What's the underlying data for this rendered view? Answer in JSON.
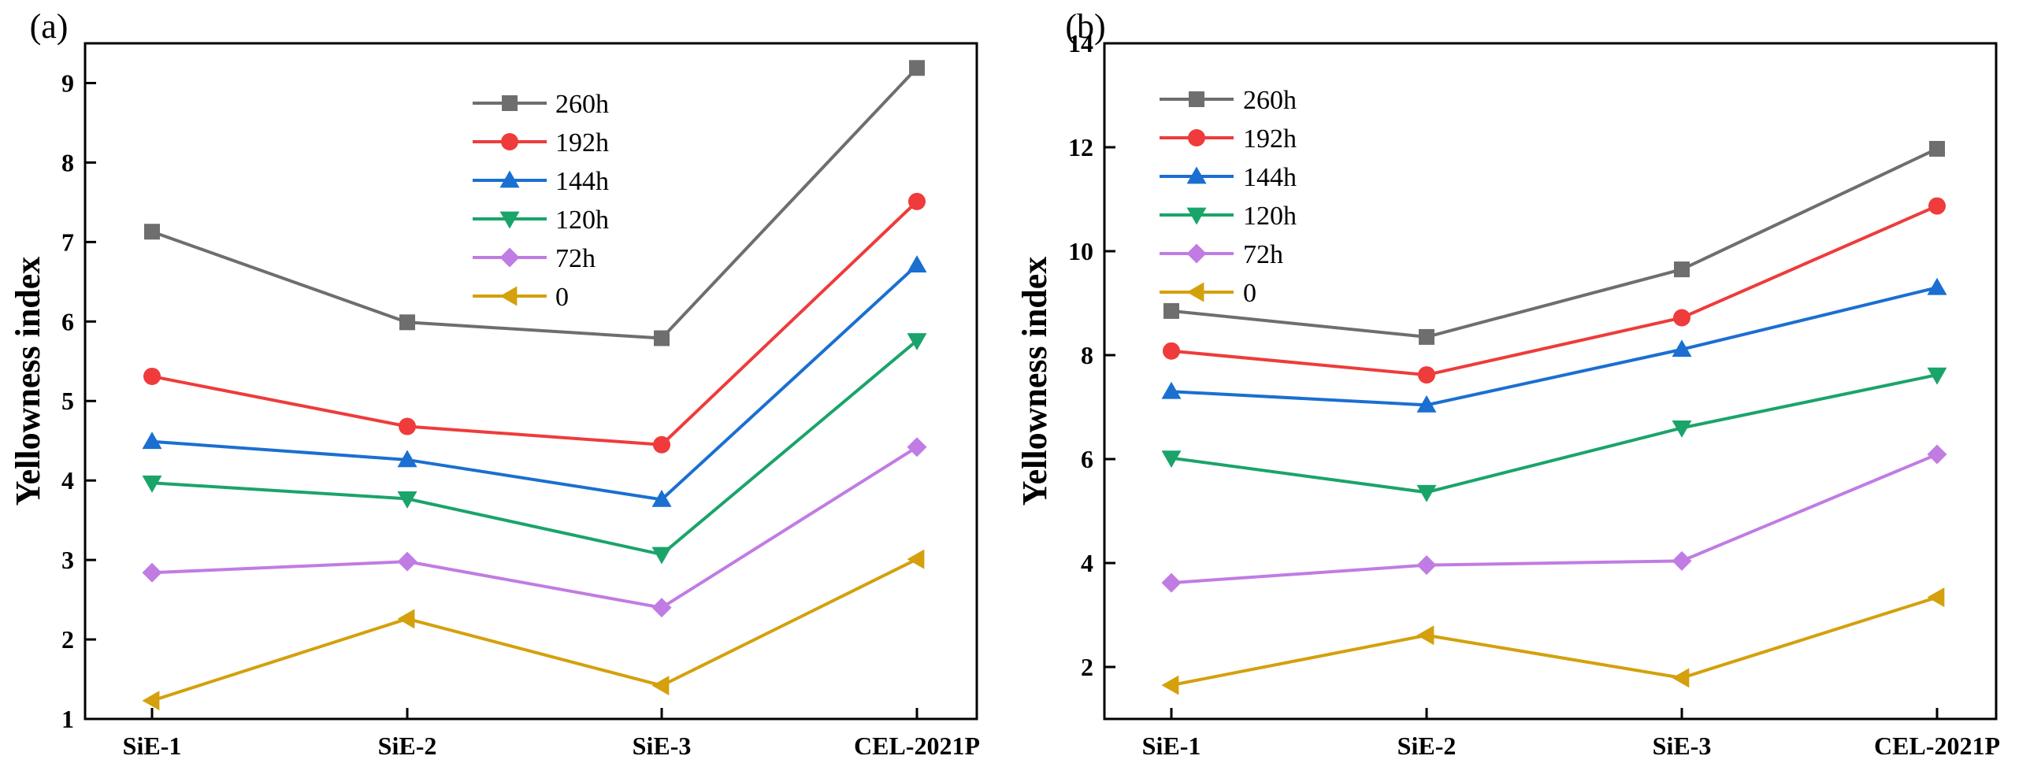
{
  "chart_data": [
    {
      "panel_label": "(a)",
      "type": "line",
      "title": "",
      "xlabel": "",
      "ylabel": "Yellowness index",
      "categories": [
        "SiE-1",
        "SiE-2",
        "SiE-3",
        "CEL-2021P"
      ],
      "ylim": [
        1,
        9.5
      ],
      "yticks": [
        1,
        2,
        3,
        4,
        5,
        6,
        7,
        8,
        9
      ],
      "legend_position": "top-center",
      "series": [
        {
          "name": "260h",
          "color": "#6e6e6e",
          "marker": "square",
          "values": [
            7.13,
            5.99,
            5.79,
            9.19
          ]
        },
        {
          "name": "192h",
          "color": "#ef3b3b",
          "marker": "circle",
          "values": [
            5.31,
            4.68,
            4.45,
            7.51
          ]
        },
        {
          "name": "144h",
          "color": "#1a6fd1",
          "marker": "triangle-up",
          "values": [
            4.49,
            4.26,
            3.76,
            6.71
          ]
        },
        {
          "name": "120h",
          "color": "#1aa46a",
          "marker": "triangle-down",
          "values": [
            3.97,
            3.77,
            3.07,
            5.76
          ]
        },
        {
          "name": "72h",
          "color": "#c07ce3",
          "marker": "diamond",
          "values": [
            2.84,
            2.98,
            2.4,
            4.42
          ]
        },
        {
          "name": "0",
          "color": "#d4a00c",
          "marker": "triangle-left",
          "values": [
            1.23,
            2.26,
            1.42,
            3.01
          ]
        }
      ]
    },
    {
      "panel_label": "(b)",
      "type": "line",
      "title": "",
      "xlabel": "",
      "ylabel": "Yellowness index",
      "categories": [
        "SiE-1",
        "SiE-2",
        "SiE-3",
        "CEL-2021P"
      ],
      "ylim": [
        1,
        14
      ],
      "yticks": [
        2,
        4,
        6,
        8,
        10,
        12,
        14
      ],
      "legend_position": "top-left",
      "series": [
        {
          "name": "260h",
          "color": "#6e6e6e",
          "marker": "square",
          "values": [
            8.85,
            8.35,
            9.65,
            11.97
          ]
        },
        {
          "name": "192h",
          "color": "#ef3b3b",
          "marker": "circle",
          "values": [
            8.08,
            7.62,
            8.72,
            10.87
          ]
        },
        {
          "name": "144h",
          "color": "#1a6fd1",
          "marker": "triangle-up",
          "values": [
            7.3,
            7.04,
            8.11,
            9.3
          ]
        },
        {
          "name": "120h",
          "color": "#1aa46a",
          "marker": "triangle-down",
          "values": [
            6.02,
            5.36,
            6.6,
            7.62
          ]
        },
        {
          "name": "72h",
          "color": "#c07ce3",
          "marker": "diamond",
          "values": [
            3.62,
            3.96,
            4.04,
            6.09
          ]
        },
        {
          "name": "0",
          "color": "#d4a00c",
          "marker": "triangle-left",
          "values": [
            1.65,
            2.61,
            1.79,
            3.34
          ]
        }
      ]
    }
  ]
}
